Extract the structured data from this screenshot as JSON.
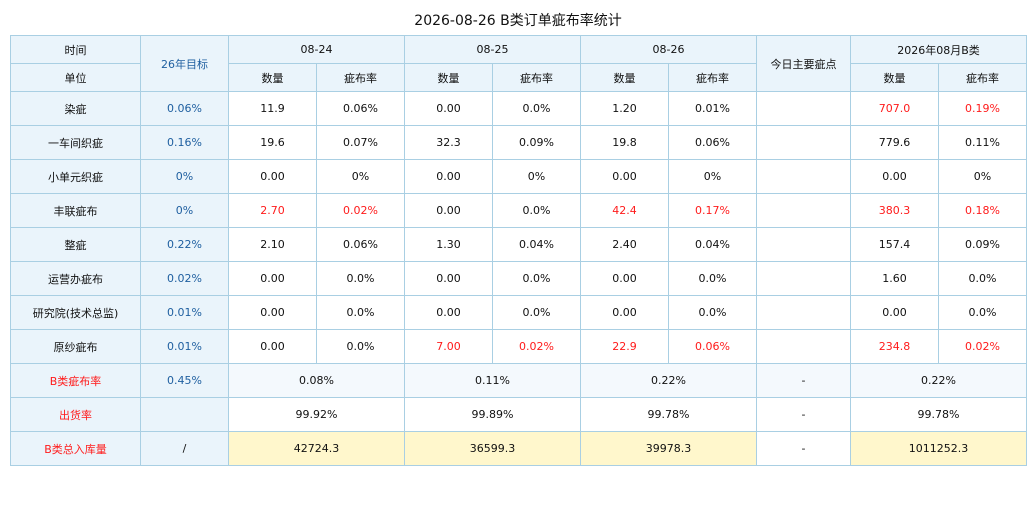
{
  "title": "2026-08-26 B类订单疵布率统计",
  "header": {
    "time_label": "时间",
    "unit_label": "单位",
    "target_label": "26年目标",
    "dates": [
      "08-24",
      "08-25",
      "08-26"
    ],
    "today_defect_label": "今日主要疵点",
    "month_label": "2026年08月B类",
    "qty_label": "数量",
    "rate_label": "疵布率"
  },
  "rows": [
    {
      "unit": "染疵",
      "target": "0.06%",
      "d1_qty": "11.9",
      "d1_rate": "0.06%",
      "d2_qty": "0.00",
      "d2_rate": "0.0%",
      "d3_qty": "1.20",
      "d3_rate": "0.01%",
      "today": "",
      "m_qty": "707.0",
      "m_rate": "0.19%"
    },
    {
      "unit": "一车间织疵",
      "target": "0.16%",
      "d1_qty": "19.6",
      "d1_rate": "0.07%",
      "d2_qty": "32.3",
      "d2_rate": "0.09%",
      "d3_qty": "19.8",
      "d3_rate": "0.06%",
      "today": "",
      "m_qty": "779.6",
      "m_rate": "0.11%"
    },
    {
      "unit": "小单元织疵",
      "target": "0%",
      "d1_qty": "0.00",
      "d1_rate": "0%",
      "d2_qty": "0.00",
      "d2_rate": "0%",
      "d3_qty": "0.00",
      "d3_rate": "0%",
      "today": "",
      "m_qty": "0.00",
      "m_rate": "0%"
    },
    {
      "unit": "丰联疵布",
      "target": "0%",
      "d1_qty": "2.70",
      "d1_rate": "0.02%",
      "d2_qty": "0.00",
      "d2_rate": "0.0%",
      "d3_qty": "42.4",
      "d3_rate": "0.17%",
      "today": "",
      "m_qty": "380.3",
      "m_rate": "0.18%"
    },
    {
      "unit": "整疵",
      "target": "0.22%",
      "d1_qty": "2.10",
      "d1_rate": "0.06%",
      "d2_qty": "1.30",
      "d2_rate": "0.04%",
      "d3_qty": "2.40",
      "d3_rate": "0.04%",
      "today": "",
      "m_qty": "157.4",
      "m_rate": "0.09%"
    },
    {
      "unit": "运营办疵布",
      "target": "0.02%",
      "d1_qty": "0.00",
      "d1_rate": "0.0%",
      "d2_qty": "0.00",
      "d2_rate": "0.0%",
      "d3_qty": "0.00",
      "d3_rate": "0.0%",
      "today": "",
      "m_qty": "1.60",
      "m_rate": "0.0%"
    },
    {
      "unit": "研究院(技术总监)",
      "target": "0.01%",
      "d1_qty": "0.00",
      "d1_rate": "0.0%",
      "d2_qty": "0.00",
      "d2_rate": "0.0%",
      "d3_qty": "0.00",
      "d3_rate": "0.0%",
      "today": "",
      "m_qty": "0.00",
      "m_rate": "0.0%"
    },
    {
      "unit": "原纱疵布",
      "target": "0.01%",
      "d1_qty": "0.00",
      "d1_rate": "0.0%",
      "d2_qty": "7.00",
      "d2_rate": "0.02%",
      "d3_qty": "22.9",
      "d3_rate": "0.06%",
      "today": "",
      "m_qty": "234.8",
      "m_rate": "0.02%"
    }
  ],
  "summary": {
    "b_rate": {
      "label": "B类疵布率",
      "target": "0.45%",
      "d1": "0.08%",
      "d2": "0.11%",
      "d3": "0.22%",
      "today": "-",
      "month": "0.22%"
    },
    "ship_rate": {
      "label": "出货率",
      "target": "",
      "d1": "99.92%",
      "d2": "99.89%",
      "d3": "99.78%",
      "today": "-",
      "month": "99.78%"
    },
    "inventory": {
      "label": "B类总入库量",
      "target": "/",
      "d1": "42724.3",
      "d2": "36599.3",
      "d3": "39978.3",
      "today": "-",
      "month": "1011252.3"
    }
  },
  "colors": {
    "accent_red": "#ff1b1b",
    "header_bg": "#eaf4fb",
    "border": "#a9cfe3",
    "inventory_bg": "#fff7cc",
    "target_text": "#1f5fa0"
  }
}
